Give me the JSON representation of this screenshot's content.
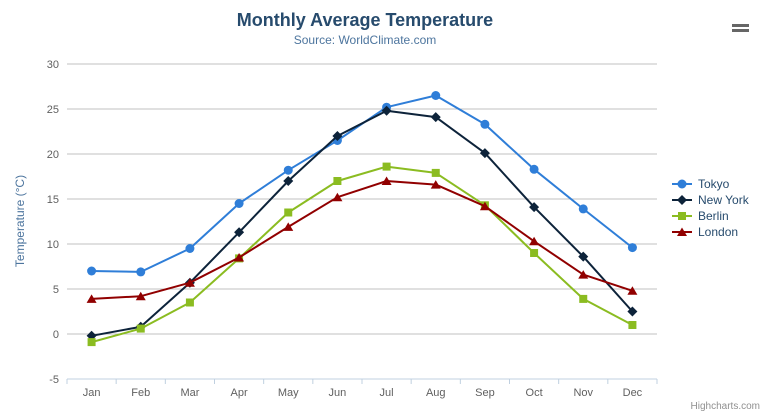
{
  "chart_data": {
    "type": "line",
    "title": "Monthly Average Temperature",
    "subtitle": "Source: WorldClimate.com",
    "xlabel": "",
    "ylabel": "Temperature (°C)",
    "ylim": [
      -5,
      30
    ],
    "yticks": [
      -5,
      0,
      5,
      10,
      15,
      20,
      25,
      30
    ],
    "grid": true,
    "legend_position": "right",
    "categories": [
      "Jan",
      "Feb",
      "Mar",
      "Apr",
      "May",
      "Jun",
      "Jul",
      "Aug",
      "Sep",
      "Oct",
      "Nov",
      "Dec"
    ],
    "series": [
      {
        "name": "Tokyo",
        "color": "#2f7ed8",
        "marker": "circle",
        "values": [
          7.0,
          6.9,
          9.5,
          14.5,
          18.2,
          21.5,
          25.2,
          26.5,
          23.3,
          18.3,
          13.9,
          9.6
        ]
      },
      {
        "name": "New York",
        "color": "#0d233a",
        "marker": "diamond",
        "values": [
          -0.2,
          0.8,
          5.7,
          11.3,
          17.0,
          22.0,
          24.8,
          24.1,
          20.1,
          14.1,
          8.6,
          2.5
        ]
      },
      {
        "name": "Berlin",
        "color": "#8bbc21",
        "marker": "square",
        "values": [
          -0.9,
          0.6,
          3.5,
          8.4,
          13.5,
          17.0,
          18.6,
          17.9,
          14.3,
          9.0,
          3.9,
          1.0
        ]
      },
      {
        "name": "London",
        "color": "#910000",
        "marker": "triangle",
        "values": [
          3.9,
          4.2,
          5.7,
          8.5,
          11.9,
          15.2,
          17.0,
          16.6,
          14.2,
          10.3,
          6.6,
          4.8
        ]
      }
    ]
  },
  "styles": {
    "grid_color": "#c0c0c0",
    "axis_line_color": "#c0d0e0",
    "tick_label_color": "#606060",
    "title_color": "#274b6d",
    "subtitle_color": "#4d759e",
    "legend_text_color": "#274b6d",
    "credits_color": "#909090"
  },
  "icons": {
    "context_menu": "hamburger-menu-icon"
  },
  "credits": {
    "label": "Highcharts.com"
  }
}
